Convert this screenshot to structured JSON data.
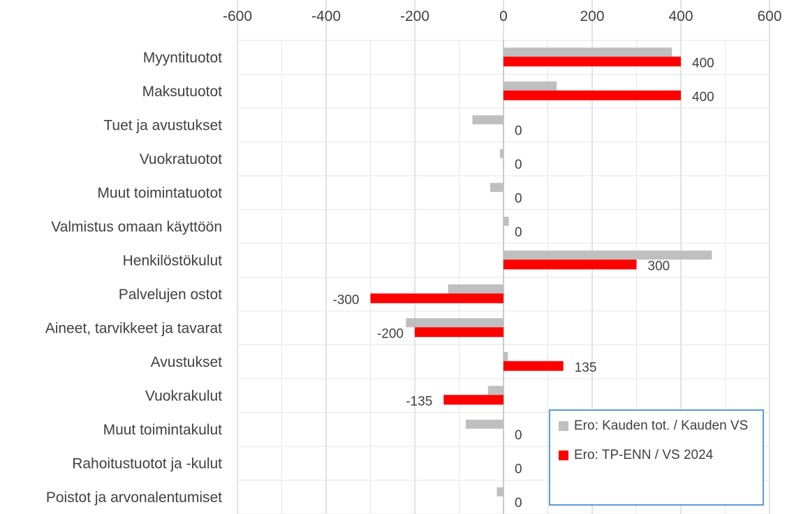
{
  "chart_data": {
    "type": "bar",
    "orientation": "horizontal",
    "categories": [
      "Myyntituotot",
      "Maksutuotot",
      "Tuet ja avustukset",
      "Vuokratuotot",
      "Muut toimintatuotot",
      "Valmistus omaan käyttöön",
      "Henkilöstökulut",
      "Palvelujen ostot",
      "Aineet, tarvikkeet ja tavarat",
      "Avustukset",
      "Vuokrakulut",
      "Muut toimintakulut",
      "Rahoitustuotot ja -kulut",
      "Poistot ja arvonalentumiset"
    ],
    "series": [
      {
        "name": "Ero: Kauden tot. / Kauden VS",
        "color": "#bfbfbf",
        "values": [
          380,
          120,
          -70,
          -8,
          -30,
          12,
          470,
          -125,
          -220,
          10,
          -35,
          -85,
          0,
          -15
        ]
      },
      {
        "name": "Ero: TP-ENN / VS 2024",
        "color": "#ff0000",
        "values": [
          400,
          400,
          0,
          0,
          0,
          0,
          300,
          -300,
          -200,
          135,
          -135,
          0,
          0,
          0
        ]
      }
    ],
    "data_labels": [
      "400",
      "400",
      "0",
      "0",
      "0",
      "0",
      "300",
      "-300",
      "-200",
      "135",
      "-135",
      "0",
      "0",
      "0"
    ],
    "xticks": [
      -600,
      -400,
      -200,
      0,
      200,
      400,
      600
    ],
    "xlim": [
      -600,
      600
    ],
    "axis_position": "top",
    "grid": true,
    "legend_position": "bottom-right"
  }
}
